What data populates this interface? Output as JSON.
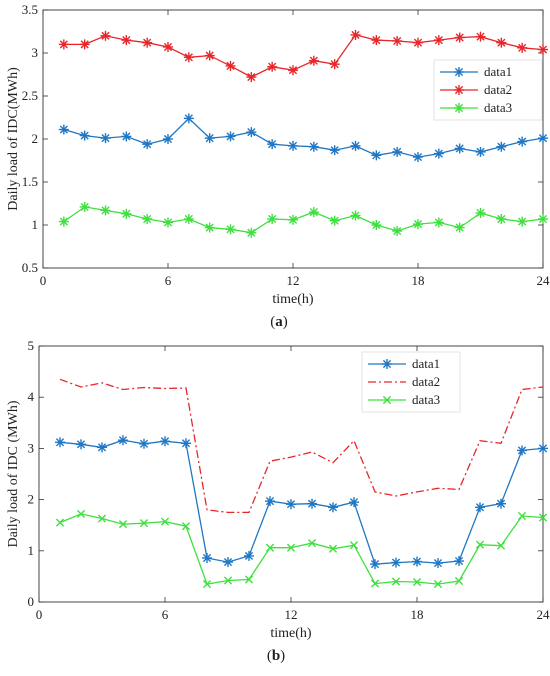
{
  "chart_data": [
    {
      "type": "line",
      "panel_label": "a",
      "xlabel": "time(h)",
      "ylabel": "Daily load of IDC(MWh)",
      "xlim": [
        0,
        24
      ],
      "ylim": [
        0.5,
        3.5
      ],
      "xticks": [
        "0",
        "6",
        "12",
        "18",
        "24"
      ],
      "yticks": [
        "0.5",
        "1",
        "1.5",
        "2",
        "2.5",
        "3",
        "3.5"
      ],
      "grid": false,
      "legend": "right",
      "x": [
        1,
        2,
        3,
        4,
        5,
        6,
        7,
        8,
        9,
        10,
        11,
        12,
        13,
        14,
        15,
        16,
        17,
        18,
        19,
        20,
        21,
        22,
        23,
        24
      ],
      "series": [
        {
          "name": "data1",
          "color": "#1f77c4",
          "line": "solid",
          "marker": "asterisk",
          "values": [
            2.11,
            2.04,
            2.01,
            2.03,
            1.94,
            2.0,
            2.24,
            2.01,
            2.03,
            2.08,
            1.94,
            1.92,
            1.91,
            1.87,
            1.92,
            1.81,
            1.85,
            1.79,
            1.83,
            1.89,
            1.85,
            1.91,
            1.97,
            2.01
          ]
        },
        {
          "name": "data2",
          "color": "#e8262a",
          "line": "solid",
          "marker": "asterisk",
          "values": [
            3.1,
            3.1,
            3.2,
            3.15,
            3.12,
            3.07,
            2.95,
            2.97,
            2.85,
            2.72,
            2.84,
            2.8,
            2.91,
            2.87,
            3.21,
            3.15,
            3.14,
            3.12,
            3.15,
            3.18,
            3.19,
            3.12,
            3.06,
            3.04
          ]
        },
        {
          "name": "data3",
          "color": "#3ee03e",
          "line": "solid",
          "marker": "asterisk",
          "values": [
            1.04,
            1.21,
            1.17,
            1.13,
            1.07,
            1.03,
            1.07,
            0.97,
            0.95,
            0.91,
            1.07,
            1.06,
            1.15,
            1.05,
            1.11,
            1.0,
            0.93,
            1.01,
            1.03,
            0.97,
            1.14,
            1.07,
            1.04,
            1.07
          ]
        }
      ]
    },
    {
      "type": "line",
      "panel_label": "b",
      "xlabel": "time(h)",
      "ylabel": "Daily load of IDC (MWh)",
      "xlim": [
        0,
        24
      ],
      "ylim": [
        0,
        5
      ],
      "xticks": [
        "0",
        "6",
        "12",
        "18",
        "24"
      ],
      "yticks": [
        "0",
        "1",
        "2",
        "3",
        "4",
        "5"
      ],
      "grid": false,
      "legend": "top-right",
      "x": [
        1,
        2,
        3,
        4,
        5,
        6,
        7,
        8,
        9,
        10,
        11,
        12,
        13,
        14,
        15,
        16,
        17,
        18,
        19,
        20,
        21,
        22,
        23,
        24
      ],
      "series": [
        {
          "name": "data1",
          "color": "#1f77c4",
          "line": "solid",
          "marker": "asterisk",
          "values": [
            3.12,
            3.08,
            3.02,
            3.16,
            3.09,
            3.14,
            3.1,
            0.86,
            0.78,
            0.9,
            1.97,
            1.91,
            1.92,
            1.85,
            1.95,
            0.74,
            0.77,
            0.79,
            0.76,
            0.8,
            1.85,
            1.92,
            2.96,
            3.0
          ]
        },
        {
          "name": "data2",
          "color": "#e8262a",
          "line": "dashdot",
          "marker": "none",
          "values": [
            4.35,
            4.2,
            4.28,
            4.15,
            4.19,
            4.17,
            4.18,
            1.8,
            1.75,
            1.75,
            2.75,
            2.83,
            2.93,
            2.72,
            3.15,
            2.15,
            2.07,
            2.15,
            2.22,
            2.2,
            3.15,
            3.1,
            4.15,
            4.2
          ]
        },
        {
          "name": "data3",
          "color": "#3ee03e",
          "line": "solid",
          "marker": "x",
          "values": [
            1.55,
            1.72,
            1.63,
            1.52,
            1.54,
            1.57,
            1.48,
            0.35,
            0.42,
            0.44,
            1.06,
            1.06,
            1.15,
            1.04,
            1.11,
            0.36,
            0.4,
            0.39,
            0.35,
            0.41,
            1.12,
            1.1,
            1.68,
            1.65
          ]
        }
      ]
    }
  ]
}
